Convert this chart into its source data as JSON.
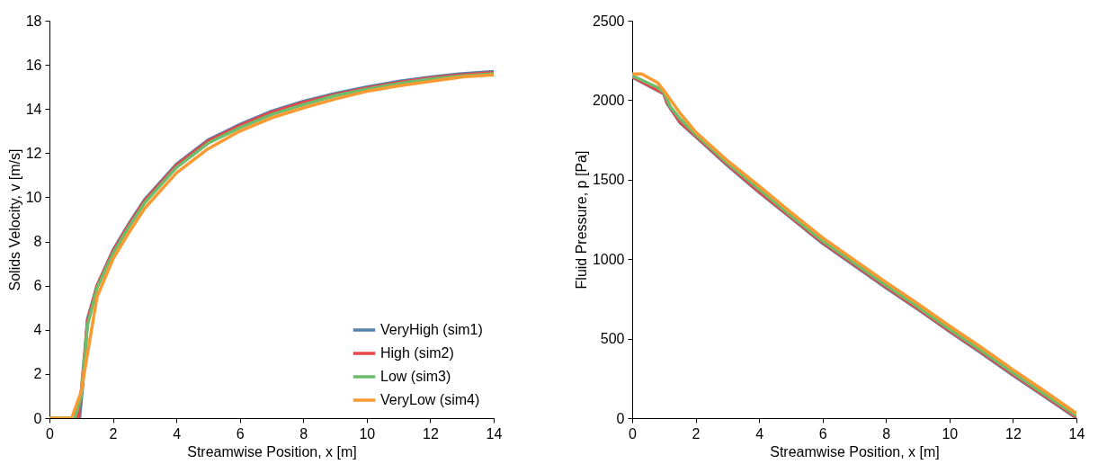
{
  "chart_data": [
    {
      "type": "line",
      "xlabel": "Streamwise Position, x [m]",
      "ylabel": "Solids Velocity, v [m/s]",
      "xlim": [
        0,
        14
      ],
      "ylim": [
        0,
        18
      ],
      "xticks": [
        0,
        2,
        4,
        6,
        8,
        10,
        12,
        14
      ],
      "yticks": [
        0,
        2,
        4,
        6,
        8,
        10,
        12,
        14,
        16,
        18
      ],
      "grid": false,
      "legend": "bottom right",
      "line_style": "solid",
      "marker": "none",
      "series": [
        {
          "name": "VeryHigh (sim1)",
          "color": "#5581ad",
          "x": [
            0,
            0.95,
            1.05,
            1.2,
            1.5,
            2,
            2.5,
            3,
            4,
            5,
            6,
            7,
            8,
            9,
            10,
            11,
            12,
            13,
            14
          ],
          "values": [
            0,
            0,
            1.5,
            4.5,
            6.0,
            7.6,
            8.8,
            9.9,
            11.5,
            12.6,
            13.3,
            13.9,
            14.35,
            14.7,
            15.0,
            15.25,
            15.45,
            15.6,
            15.7
          ]
        },
        {
          "name": "High (sim2)",
          "color": "#e8474a",
          "x": [
            0,
            0.9,
            1.0,
            1.2,
            1.5,
            2,
            2.5,
            3,
            4,
            5,
            6,
            7,
            8,
            9,
            10,
            11,
            12,
            13,
            14
          ],
          "values": [
            0,
            0,
            1.2,
            4.4,
            6.0,
            7.55,
            8.75,
            9.85,
            11.45,
            12.55,
            13.25,
            13.85,
            14.3,
            14.65,
            14.95,
            15.2,
            15.4,
            15.55,
            15.65
          ]
        },
        {
          "name": "Low (sim3)",
          "color": "#6cbd6c",
          "x": [
            0,
            0.8,
            1.0,
            1.2,
            1.5,
            2,
            2.5,
            3,
            4,
            5,
            6,
            7,
            8,
            9,
            10,
            11,
            12,
            13,
            14
          ],
          "values": [
            0,
            0,
            1.0,
            4.2,
            5.9,
            7.45,
            8.65,
            9.75,
            11.35,
            12.45,
            13.15,
            13.75,
            14.2,
            14.6,
            14.9,
            15.15,
            15.35,
            15.5,
            15.6
          ]
        },
        {
          "name": "VeryLow (sim4)",
          "color": "#f89a31",
          "x": [
            0,
            0.7,
            1.0,
            1.5,
            2,
            2.5,
            3,
            4,
            5,
            6,
            7,
            8,
            9,
            10,
            11,
            12,
            13,
            14
          ],
          "values": [
            0,
            0,
            1.2,
            5.5,
            7.2,
            8.4,
            9.5,
            11.1,
            12.2,
            13.0,
            13.6,
            14.05,
            14.45,
            14.8,
            15.05,
            15.25,
            15.45,
            15.55
          ]
        }
      ]
    },
    {
      "type": "line",
      "xlabel": "Streamwise Position, x [m]",
      "ylabel": "Fluid Pressure, p [Pa]",
      "xlim": [
        0,
        14
      ],
      "ylim": [
        0,
        2500
      ],
      "xticks": [
        0,
        2,
        4,
        6,
        8,
        10,
        12,
        14
      ],
      "yticks": [
        0,
        500,
        1000,
        1500,
        2000,
        2500
      ],
      "grid": false,
      "legend": false,
      "line_style": "solid",
      "marker": "none",
      "series": [
        {
          "color": "#5581ad",
          "x": [
            0,
            0.8,
            1.0,
            1.1,
            1.5,
            2,
            3,
            4,
            5,
            6,
            7,
            8,
            9,
            10,
            11,
            12,
            13,
            14
          ],
          "values": [
            2145,
            2060,
            2040,
            1980,
            1860,
            1770,
            1590,
            1420,
            1260,
            1100,
            960,
            820,
            685,
            545,
            410,
            270,
            135,
            0
          ]
        },
        {
          "color": "#e8474a",
          "x": [
            0,
            0.8,
            1.0,
            1.1,
            1.5,
            2,
            3,
            4,
            5,
            6,
            7,
            8,
            9,
            10,
            11,
            12,
            13,
            14
          ],
          "values": [
            2148,
            2063,
            2042,
            1985,
            1865,
            1775,
            1595,
            1425,
            1265,
            1105,
            965,
            825,
            690,
            550,
            415,
            275,
            140,
            5
          ]
        },
        {
          "color": "#6cbd6c",
          "x": [
            0,
            0.8,
            1.0,
            1.2,
            1.5,
            2,
            3,
            4,
            5,
            6,
            7,
            8,
            9,
            10,
            11,
            12,
            13,
            14
          ],
          "values": [
            2155,
            2080,
            2050,
            1960,
            1885,
            1785,
            1605,
            1440,
            1275,
            1115,
            975,
            835,
            700,
            560,
            425,
            285,
            150,
            15
          ]
        },
        {
          "color": "#f89a31",
          "x": [
            0,
            0.3,
            0.8,
            1.0,
            1.5,
            2,
            3,
            4,
            5,
            6,
            7,
            8,
            9,
            10,
            11,
            12,
            13,
            14
          ],
          "values": [
            2165,
            2165,
            2110,
            2060,
            1920,
            1800,
            1620,
            1460,
            1295,
            1135,
            995,
            855,
            720,
            580,
            445,
            305,
            170,
            30
          ]
        }
      ]
    }
  ]
}
